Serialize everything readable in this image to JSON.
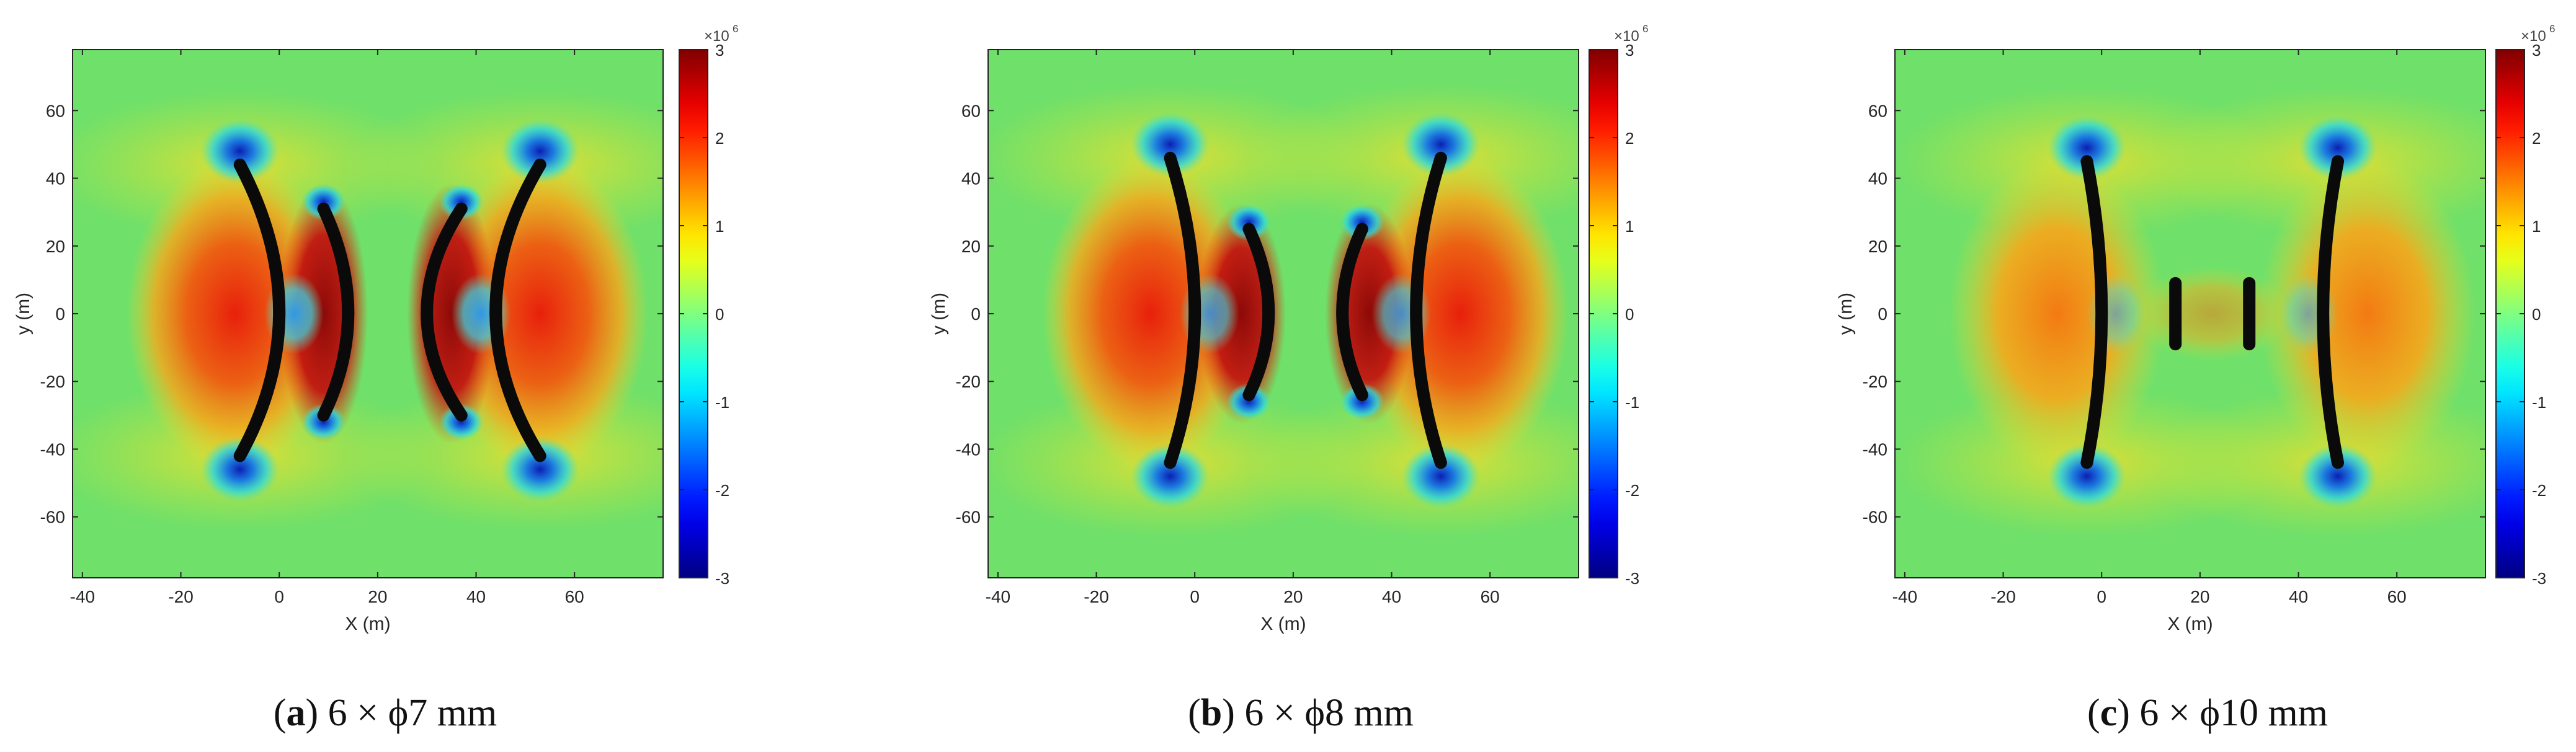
{
  "figure": {
    "panels": [
      {
        "caption_letter": "a",
        "caption_rest": " 6 × ϕ7 mm"
      },
      {
        "caption_letter": "b",
        "caption_rest": " 6 × ϕ8 mm"
      },
      {
        "caption_letter": "c",
        "caption_rest": " 6 × ϕ10 mm"
      }
    ]
  },
  "chart_data": [
    {
      "type": "heatmap",
      "title": "",
      "xlabel": "X (m)",
      "ylabel": "y (m)",
      "xlim": [
        -42,
        78
      ],
      "ylim": [
        -78,
        78
      ],
      "xticks": [
        -40,
        -20,
        0,
        20,
        40,
        60
      ],
      "yticks": [
        60,
        40,
        20,
        0,
        -20,
        -40,
        -60
      ],
      "colorbar": {
        "min": -3,
        "max": 3,
        "ticks": [
          3,
          2,
          1,
          0,
          -1,
          -2,
          -3
        ],
        "multiplier": "×10",
        "exponent": "6",
        "colormap": "jet"
      },
      "cracks": [
        {
          "x": [
            -8,
            0,
            -8
          ],
          "y": [
            44,
            0,
            -42
          ]
        },
        {
          "x": [
            9,
            14,
            9
          ],
          "y": [
            31,
            0,
            -30
          ]
        },
        {
          "x": [
            37,
            30,
            37
          ],
          "y": [
            31,
            0,
            -30
          ]
        },
        {
          "x": [
            53,
            44,
            53
          ],
          "y": [
            44,
            0,
            -42
          ]
        }
      ]
    },
    {
      "type": "heatmap",
      "title": "",
      "xlabel": "X (m)",
      "ylabel": "y (m)",
      "xlim": [
        -42,
        78
      ],
      "ylim": [
        -78,
        78
      ],
      "xticks": [
        -40,
        -20,
        0,
        20,
        40,
        60
      ],
      "yticks": [
        60,
        40,
        20,
        0,
        -20,
        -40,
        -60
      ],
      "colorbar": {
        "min": -3,
        "max": 3,
        "ticks": [
          3,
          2,
          1,
          0,
          -1,
          -2,
          -3
        ],
        "multiplier": "×10",
        "exponent": "6",
        "colormap": "jet"
      },
      "cracks": [
        {
          "x": [
            -5,
            0,
            -5
          ],
          "y": [
            46,
            0,
            -44
          ]
        },
        {
          "x": [
            11,
            15,
            11
          ],
          "y": [
            25,
            0,
            -24
          ]
        },
        {
          "x": [
            34,
            30,
            34
          ],
          "y": [
            25,
            0,
            -24
          ]
        },
        {
          "x": [
            50,
            45,
            50
          ],
          "y": [
            46,
            0,
            -44
          ]
        }
      ]
    },
    {
      "type": "heatmap",
      "title": "",
      "xlabel": "X (m)",
      "ylabel": "y (m)",
      "xlim": [
        -42,
        78
      ],
      "ylim": [
        -78,
        78
      ],
      "xticks": [
        -40,
        -20,
        0,
        20,
        40,
        60
      ],
      "yticks": [
        60,
        40,
        20,
        0,
        -20,
        -40,
        -60
      ],
      "colorbar": {
        "min": -3,
        "max": 3,
        "ticks": [
          3,
          2,
          1,
          0,
          -1,
          -2,
          -3
        ],
        "multiplier": "×10",
        "exponent": "6",
        "colormap": "jet"
      },
      "cracks": [
        {
          "x": [
            -3,
            0,
            -3
          ],
          "y": [
            45,
            0,
            -44
          ]
        },
        {
          "x": [
            15,
            15
          ],
          "y": [
            9,
            -9
          ]
        },
        {
          "x": [
            30,
            30
          ],
          "y": [
            9,
            -9
          ]
        },
        {
          "x": [
            48,
            45,
            48
          ],
          "y": [
            45,
            0,
            -44
          ]
        }
      ]
    }
  ]
}
